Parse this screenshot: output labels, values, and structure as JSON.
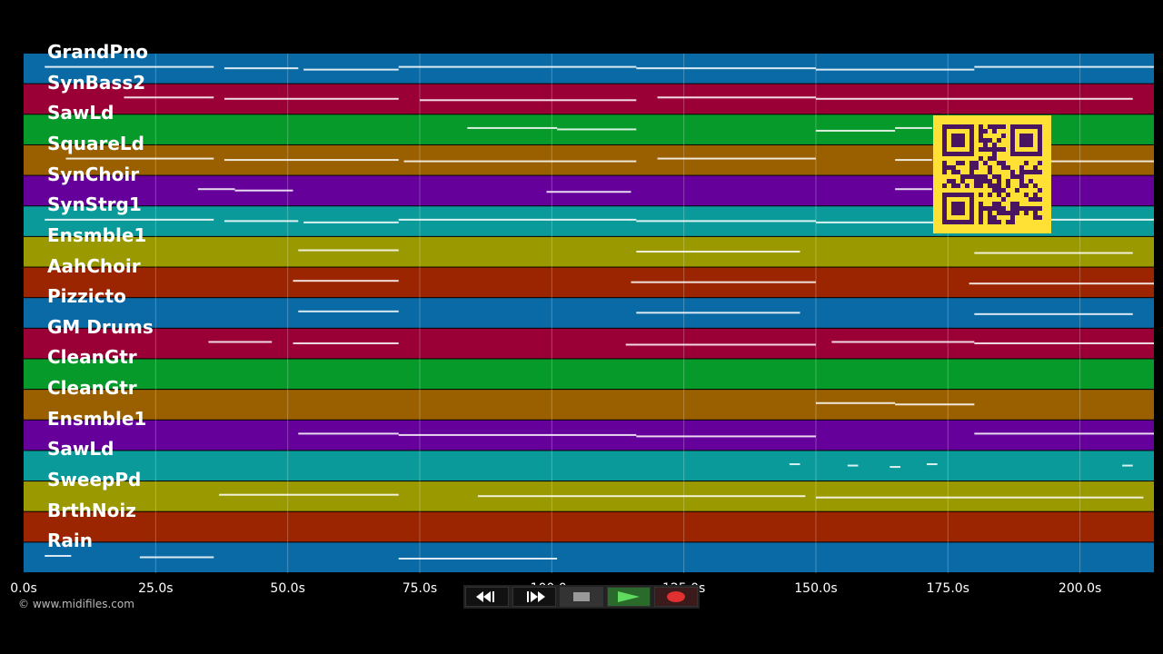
{
  "window": {
    "copyright": "© www.midifiles.com"
  },
  "axis": {
    "ticks": [
      "0.0s",
      "25.0s",
      "50.0s",
      "75.0s",
      "100.0s",
      "125.0s",
      "150.0s",
      "175.0s",
      "200.0s"
    ],
    "values": [
      0,
      25,
      50,
      75,
      100,
      125,
      150,
      175,
      200
    ],
    "max_seconds": 214
  },
  "tracks": [
    {
      "name": "GrandPno",
      "color": "#0a6aa5"
    },
    {
      "name": "SynBass2",
      "color": "#9a0035"
    },
    {
      "name": "SawLd",
      "color": "#069a2a"
    },
    {
      "name": "SquareLd",
      "color": "#9a6000"
    },
    {
      "name": "SynChoir",
      "color": "#65009a"
    },
    {
      "name": "SynStrg1",
      "color": "#0a9a9a"
    },
    {
      "name": "Ensmble1",
      "color": "#9a9a00"
    },
    {
      "name": "AahChoir",
      "color": "#9a2500"
    },
    {
      "name": "Pizzicto",
      "color": "#0a6aa5"
    },
    {
      "name": "GM Drums",
      "color": "#9a0035"
    },
    {
      "name": "CleanGtr",
      "color": "#069a2a"
    },
    {
      "name": "CleanGtr",
      "color": "#9a6000"
    },
    {
      "name": "Ensmble1",
      "color": "#65009a"
    },
    {
      "name": "SawLd",
      "color": "#0a9a9a"
    },
    {
      "name": "SweepPd",
      "color": "#9a9a00"
    },
    {
      "name": "BrthNoiz",
      "color": "#9a2500"
    },
    {
      "name": "Rain",
      "color": "#0a6aa5"
    }
  ],
  "notes": [
    {
      "track": 0,
      "segments": [
        [
          4,
          36
        ],
        [
          38,
          52
        ],
        [
          53,
          71
        ],
        [
          71,
          116
        ],
        [
          116,
          150
        ],
        [
          150,
          180
        ],
        [
          180,
          214
        ]
      ]
    },
    {
      "track": 1,
      "segments": [
        [
          19,
          36
        ],
        [
          38,
          71
        ],
        [
          75,
          116
        ],
        [
          120,
          150
        ],
        [
          150,
          210
        ]
      ]
    },
    {
      "track": 2,
      "segments": [
        [
          84,
          101
        ],
        [
          101,
          116
        ],
        [
          150,
          165
        ],
        [
          165,
          172
        ]
      ]
    },
    {
      "track": 3,
      "segments": [
        [
          8,
          36
        ],
        [
          38,
          71
        ],
        [
          72,
          116
        ],
        [
          120,
          150
        ],
        [
          165,
          172
        ],
        [
          180,
          214
        ]
      ]
    },
    {
      "track": 4,
      "segments": [
        [
          33,
          40
        ],
        [
          40,
          51
        ],
        [
          99,
          115
        ],
        [
          165,
          172
        ]
      ]
    },
    {
      "track": 5,
      "segments": [
        [
          4,
          36
        ],
        [
          38,
          52
        ],
        [
          53,
          71
        ],
        [
          71,
          116
        ],
        [
          116,
          150
        ],
        [
          150,
          180
        ],
        [
          180,
          214
        ]
      ]
    },
    {
      "track": 6,
      "segments": [
        [
          52,
          71
        ],
        [
          116,
          147
        ],
        [
          180,
          210
        ]
      ]
    },
    {
      "track": 7,
      "segments": [
        [
          51,
          71
        ],
        [
          115,
          150
        ],
        [
          179,
          214
        ]
      ]
    },
    {
      "track": 8,
      "segments": [
        [
          52,
          71
        ],
        [
          116,
          147
        ],
        [
          180,
          210
        ]
      ]
    },
    {
      "track": 9,
      "segments": [
        [
          35,
          47
        ],
        [
          51,
          71
        ],
        [
          114,
          150
        ],
        [
          153,
          180
        ],
        [
          180,
          214
        ]
      ]
    },
    {
      "track": 11,
      "segments": [
        [
          150,
          165
        ],
        [
          165,
          180
        ]
      ]
    },
    {
      "track": 12,
      "segments": [
        [
          52,
          71
        ],
        [
          71,
          116
        ],
        [
          116,
          150
        ],
        [
          180,
          214
        ]
      ]
    },
    {
      "track": 13,
      "segments": [
        [
          145,
          147
        ],
        [
          156,
          158
        ],
        [
          164,
          166
        ],
        [
          171,
          173
        ],
        [
          208,
          210
        ]
      ]
    },
    {
      "track": 14,
      "segments": [
        [
          37,
          71
        ],
        [
          86,
          148
        ],
        [
          150,
          212
        ]
      ]
    },
    {
      "track": 16,
      "segments": [
        [
          4,
          9
        ],
        [
          22,
          36
        ],
        [
          71,
          101
        ]
      ]
    }
  ],
  "transport": {
    "rewind_icon": "rewind-icon",
    "forward_icon": "fast-forward-icon",
    "stop_icon": "stop-icon",
    "play_icon": "play-icon",
    "record_icon": "record-icon"
  }
}
